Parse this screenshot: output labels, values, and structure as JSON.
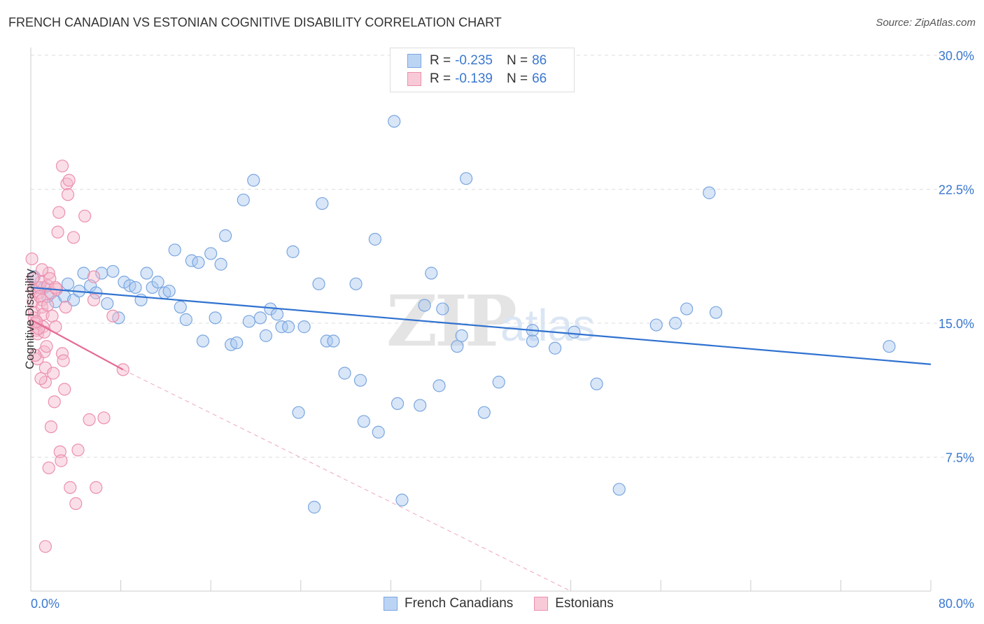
{
  "title": "FRENCH CANADIAN VS ESTONIAN COGNITIVE DISABILITY CORRELATION CHART",
  "source": "Source: ZipAtlas.com",
  "watermark": {
    "zip": "ZIP",
    "atlas": "atlas"
  },
  "legend": {
    "rows": [
      {
        "r_label": "R = ",
        "r_value": "-0.235",
        "n_label": "N = ",
        "n_value": "86"
      },
      {
        "r_label": "R = ",
        "r_value": "-0.139",
        "n_label": "N = ",
        "n_value": "66"
      }
    ]
  },
  "bottom_legend": [
    "French Canadians",
    "Estonians"
  ],
  "colors": {
    "blue_fill": "#a9c8f0",
    "blue_stroke": "#7aa6df",
    "blue_line": "#2f72d0",
    "pink_fill": "#f5b8cb",
    "pink_stroke": "#ec8fae",
    "pink_line": "#e56b93",
    "grid": "#dddddd",
    "tick_label": "#3a78d0"
  },
  "chart_data": {
    "type": "scatter",
    "title": "FRENCH CANADIAN VS ESTONIAN COGNITIVE DISABILITY CORRELATION CHART",
    "xlabel": "",
    "ylabel": "Cognitive Disability",
    "xlim": [
      0,
      80
    ],
    "ylim": [
      0,
      31
    ],
    "x_tick_labels": [
      "0.0%",
      "80.0%"
    ],
    "y_ticks": [
      7.5,
      15.0,
      22.5,
      30.0
    ],
    "y_tick_labels": [
      "7.5%",
      "15.0%",
      "22.5%",
      "30.0%"
    ],
    "grid": "horizontal dashed",
    "series": [
      {
        "name": "French Canadians",
        "r": -0.235,
        "n": 86,
        "trend": {
          "x": [
            0,
            80
          ],
          "y": [
            17.0,
            12.7
          ]
        },
        "points": [
          [
            0.3,
            17.6
          ],
          [
            0.6,
            17.0
          ],
          [
            1.2,
            17.0
          ],
          [
            1.5,
            16.5
          ],
          [
            2.2,
            16.2
          ],
          [
            3.0,
            16.5
          ],
          [
            3.3,
            17.2
          ],
          [
            3.8,
            16.3
          ],
          [
            4.3,
            16.8
          ],
          [
            4.7,
            17.8
          ],
          [
            5.3,
            17.1
          ],
          [
            5.8,
            16.7
          ],
          [
            6.3,
            17.8
          ],
          [
            6.8,
            16.1
          ],
          [
            7.3,
            17.9
          ],
          [
            7.8,
            15.3
          ],
          [
            8.3,
            17.3
          ],
          [
            8.8,
            17.1
          ],
          [
            9.3,
            17.0
          ],
          [
            9.8,
            16.3
          ],
          [
            10.3,
            17.8
          ],
          [
            10.8,
            17.0
          ],
          [
            11.3,
            17.3
          ],
          [
            11.9,
            16.7
          ],
          [
            12.3,
            16.8
          ],
          [
            12.8,
            19.1
          ],
          [
            13.3,
            15.9
          ],
          [
            13.8,
            15.2
          ],
          [
            14.3,
            18.5
          ],
          [
            14.9,
            18.4
          ],
          [
            15.3,
            14.0
          ],
          [
            16.0,
            18.9
          ],
          [
            16.4,
            15.3
          ],
          [
            16.9,
            18.3
          ],
          [
            17.3,
            19.9
          ],
          [
            17.8,
            13.8
          ],
          [
            18.3,
            13.9
          ],
          [
            18.9,
            21.9
          ],
          [
            19.4,
            15.1
          ],
          [
            19.8,
            23.0
          ],
          [
            20.4,
            15.3
          ],
          [
            20.9,
            14.3
          ],
          [
            21.3,
            15.8
          ],
          [
            21.9,
            15.5
          ],
          [
            22.3,
            14.8
          ],
          [
            22.9,
            14.8
          ],
          [
            23.3,
            19.0
          ],
          [
            23.8,
            10.0
          ],
          [
            24.3,
            14.8
          ],
          [
            25.2,
            4.7
          ],
          [
            25.6,
            17.2
          ],
          [
            25.9,
            21.7
          ],
          [
            26.3,
            14.0
          ],
          [
            26.9,
            14.0
          ],
          [
            27.9,
            12.2
          ],
          [
            28.9,
            17.2
          ],
          [
            29.3,
            11.8
          ],
          [
            29.6,
            9.5
          ],
          [
            30.6,
            19.7
          ],
          [
            30.9,
            8.9
          ],
          [
            32.3,
            26.3
          ],
          [
            32.6,
            10.5
          ],
          [
            33.0,
            5.1
          ],
          [
            34.6,
            10.4
          ],
          [
            35.0,
            16.0
          ],
          [
            35.6,
            17.8
          ],
          [
            36.3,
            11.5
          ],
          [
            36.6,
            15.8
          ],
          [
            37.3,
            29.6
          ],
          [
            37.9,
            13.7
          ],
          [
            38.3,
            14.3
          ],
          [
            38.7,
            23.1
          ],
          [
            40.3,
            10.0
          ],
          [
            41.6,
            11.7
          ],
          [
            44.6,
            14.6
          ],
          [
            44.6,
            14.0
          ],
          [
            46.6,
            13.6
          ],
          [
            48.3,
            14.5
          ],
          [
            50.3,
            11.6
          ],
          [
            52.3,
            5.7
          ],
          [
            55.6,
            14.9
          ],
          [
            57.3,
            15.0
          ],
          [
            58.3,
            15.8
          ],
          [
            60.3,
            22.3
          ],
          [
            60.9,
            15.6
          ],
          [
            76.3,
            13.7
          ]
        ]
      },
      {
        "name": "Estonians",
        "r": -0.139,
        "n": 66,
        "trend": {
          "x": [
            0,
            8.2
          ],
          "y": [
            15.2,
            12.4
          ]
        },
        "trend_extended": {
          "x": [
            8.2,
            48
          ],
          "y": [
            12.4,
            0
          ]
        },
        "points": [
          [
            0.1,
            18.6
          ],
          [
            0.2,
            16.9
          ],
          [
            0.2,
            16.2
          ],
          [
            0.3,
            15.6
          ],
          [
            0.3,
            15.3
          ],
          [
            0.4,
            15.0
          ],
          [
            0.5,
            14.6
          ],
          [
            0.6,
            14.4
          ],
          [
            0.6,
            13.0
          ],
          [
            0.7,
            16.7
          ],
          [
            0.8,
            17.0
          ],
          [
            0.8,
            16.5
          ],
          [
            0.9,
            17.3
          ],
          [
            1.0,
            16.3
          ],
          [
            1.0,
            15.9
          ],
          [
            1.1,
            15.5
          ],
          [
            1.1,
            14.8
          ],
          [
            1.2,
            14.5
          ],
          [
            1.2,
            13.4
          ],
          [
            1.3,
            12.5
          ],
          [
            1.3,
            11.7
          ],
          [
            1.4,
            13.7
          ],
          [
            1.5,
            17.1
          ],
          [
            1.6,
            17.8
          ],
          [
            1.7,
            17.5
          ],
          [
            1.8,
            16.7
          ],
          [
            1.9,
            15.4
          ],
          [
            2.0,
            12.2
          ],
          [
            2.1,
            10.6
          ],
          [
            2.2,
            14.8
          ],
          [
            2.3,
            16.9
          ],
          [
            2.4,
            20.1
          ],
          [
            2.5,
            21.2
          ],
          [
            2.6,
            7.8
          ],
          [
            2.7,
            7.3
          ],
          [
            2.8,
            13.3
          ],
          [
            2.9,
            12.9
          ],
          [
            3.0,
            11.3
          ],
          [
            3.1,
            15.9
          ],
          [
            3.2,
            22.8
          ],
          [
            3.3,
            22.2
          ],
          [
            3.4,
            23.0
          ],
          [
            3.5,
            5.8
          ],
          [
            3.8,
            19.8
          ],
          [
            4.0,
            4.9
          ],
          [
            4.2,
            7.9
          ],
          [
            4.8,
            21.0
          ],
          [
            5.2,
            9.6
          ],
          [
            5.6,
            17.6
          ],
          [
            5.6,
            16.3
          ],
          [
            5.8,
            5.8
          ],
          [
            6.5,
            9.7
          ],
          [
            7.3,
            15.4
          ],
          [
            8.2,
            12.4
          ],
          [
            2.8,
            23.8
          ],
          [
            1.3,
            2.5
          ],
          [
            1.6,
            6.9
          ],
          [
            1.8,
            9.2
          ],
          [
            0.4,
            13.2
          ],
          [
            0.9,
            11.9
          ],
          [
            1.5,
            16.0
          ],
          [
            0.7,
            14.7
          ],
          [
            0.2,
            17.5
          ],
          [
            2.2,
            17.0
          ],
          [
            1.0,
            18.0
          ],
          [
            0.5,
            15.1
          ]
        ]
      }
    ]
  }
}
